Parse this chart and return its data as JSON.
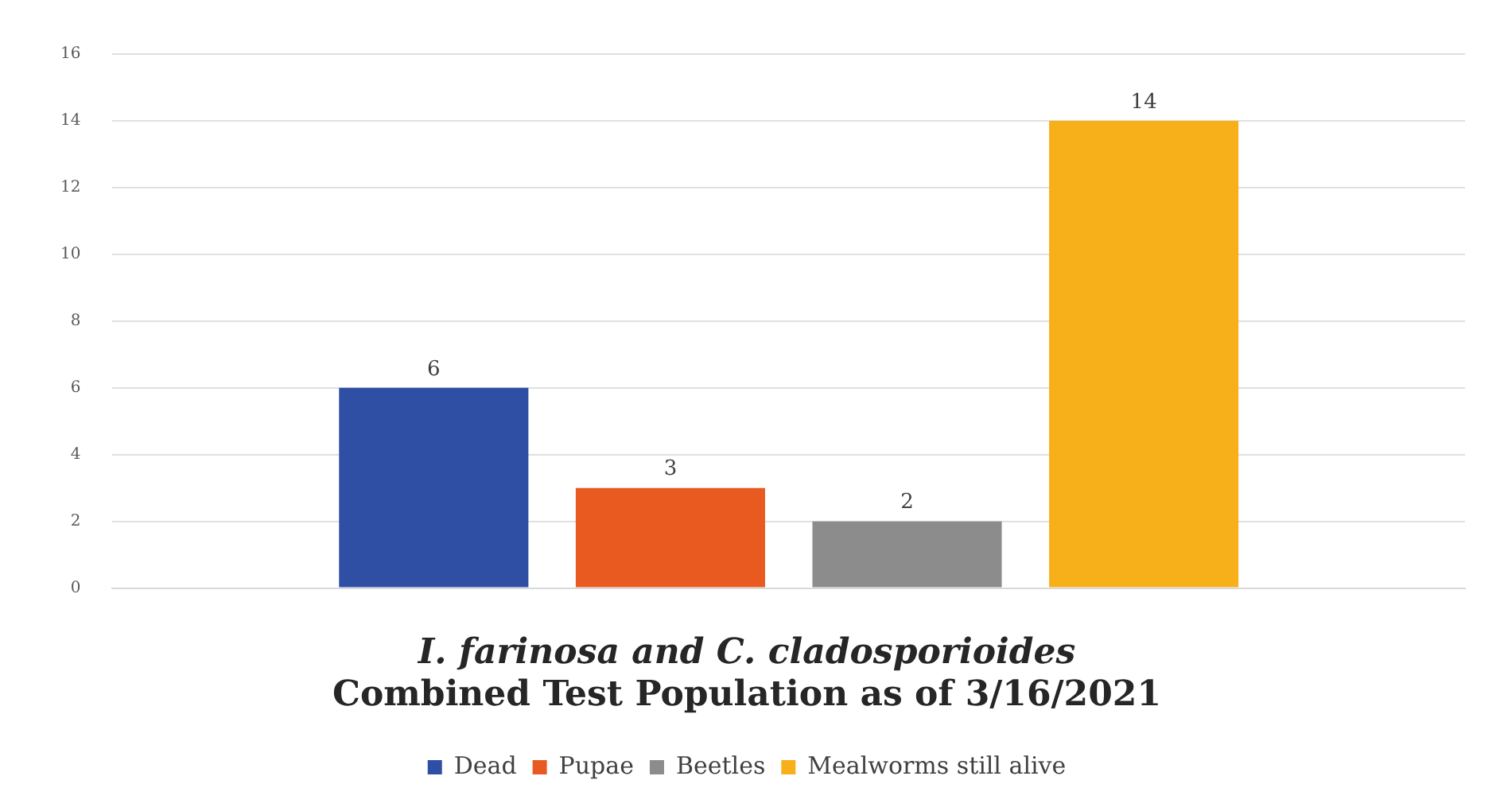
{
  "chart_data": {
    "type": "bar",
    "title": "I. farinosa and C. cladosporioides",
    "subtitle": "Combined Test Population as of 3/16/2021",
    "categories": [
      null
    ],
    "series": [
      {
        "name": "Dead",
        "color": "#2e4fa3",
        "values": [
          6
        ]
      },
      {
        "name": "Pupae",
        "color": "#e85a20",
        "values": [
          3
        ]
      },
      {
        "name": "Beetles",
        "color": "#8c8c8c",
        "values": [
          2
        ]
      },
      {
        "name": "Mealworms still alive",
        "color": "#f7b01a",
        "values": [
          14
        ]
      }
    ],
    "ylim": [
      0,
      16
    ],
    "yticks": [
      0,
      2,
      4,
      6,
      8,
      10,
      12,
      14,
      16
    ],
    "grid": "y",
    "legend": "bottom",
    "data_labels": true
  }
}
